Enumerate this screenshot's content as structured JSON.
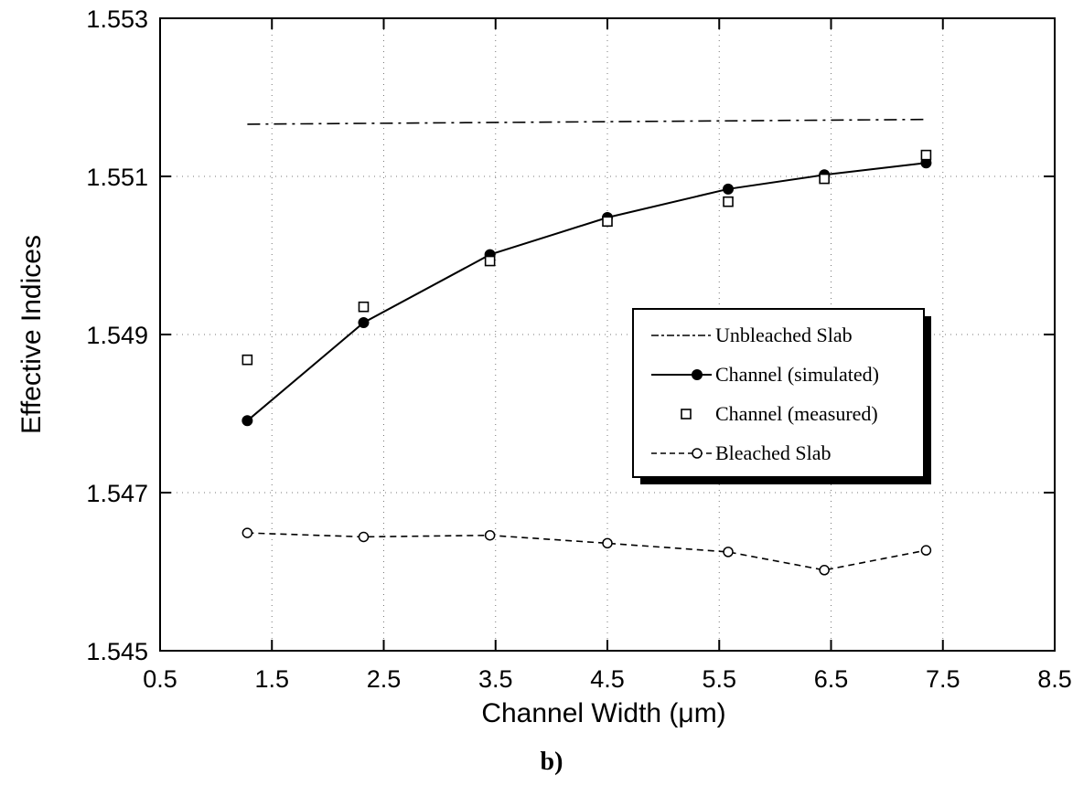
{
  "chart_data": {
    "type": "line",
    "xlabel": "Channel Width (μm)",
    "ylabel": "Effective Indices",
    "xlim": [
      0.5,
      8.5
    ],
    "ylim": [
      1.545,
      1.553
    ],
    "x_ticks": [
      "0.5",
      "1.5",
      "2.5",
      "3.5",
      "4.5",
      "5.5",
      "6.5",
      "7.5",
      "8.5"
    ],
    "y_ticks": [
      "1.545",
      "1.547",
      "1.549",
      "1.551",
      "1.553"
    ],
    "grid": "dotted",
    "legend_position": "center-right",
    "panel_label": "b)",
    "series": [
      {
        "name": "Unbleached Slab",
        "style": "dash-dot",
        "marker": "none",
        "points": [
          {
            "x": 1.28,
            "y": 1.55166
          },
          {
            "x": 7.35,
            "y": 1.55172
          }
        ]
      },
      {
        "name": "Channel (simulated)",
        "style": "solid",
        "marker": "filled-circle",
        "points": [
          {
            "x": 1.28,
            "y": 1.54791
          },
          {
            "x": 2.32,
            "y": 1.54915
          },
          {
            "x": 3.45,
            "y": 1.55001
          },
          {
            "x": 4.5,
            "y": 1.55048
          },
          {
            "x": 5.58,
            "y": 1.55084
          },
          {
            "x": 6.44,
            "y": 1.55102
          },
          {
            "x": 7.35,
            "y": 1.55117
          }
        ]
      },
      {
        "name": "Channel (measured)",
        "style": "none",
        "marker": "open-square",
        "points": [
          {
            "x": 1.28,
            "y": 1.54868
          },
          {
            "x": 2.32,
            "y": 1.54935
          },
          {
            "x": 3.45,
            "y": 1.54993
          },
          {
            "x": 4.5,
            "y": 1.55043
          },
          {
            "x": 5.58,
            "y": 1.55068
          },
          {
            "x": 6.44,
            "y": 1.55097
          },
          {
            "x": 7.35,
            "y": 1.55127
          }
        ]
      },
      {
        "name": "Bleached Slab",
        "style": "dashed",
        "marker": "open-circle",
        "points": [
          {
            "x": 1.28,
            "y": 1.54649
          },
          {
            "x": 2.32,
            "y": 1.54644
          },
          {
            "x": 3.45,
            "y": 1.54646
          },
          {
            "x": 4.5,
            "y": 1.54636
          },
          {
            "x": 5.58,
            "y": 1.54625
          },
          {
            "x": 6.44,
            "y": 1.54602
          },
          {
            "x": 7.35,
            "y": 1.54627
          }
        ]
      }
    ]
  }
}
